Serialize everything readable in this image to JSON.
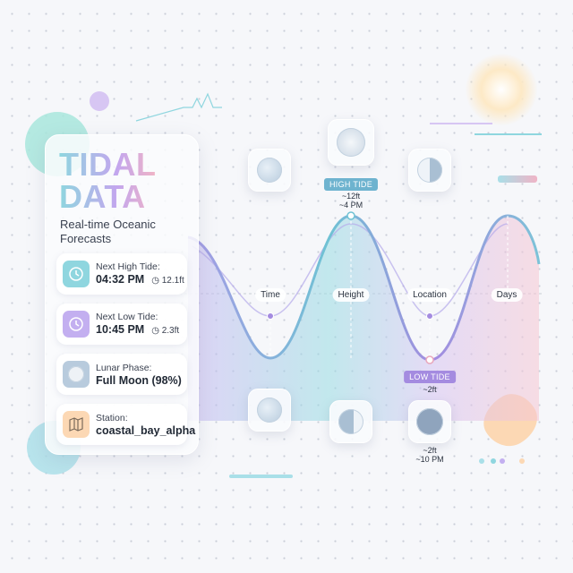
{
  "panel": {
    "title_line1": "TIDAL",
    "title_line2": "DATA",
    "subtitle": "Real-time Oceanic Forecasts",
    "items": [
      {
        "label": "Next High Tide:",
        "value": "04:32 PM",
        "extra": "12.1ft",
        "icon": "clock-icon",
        "color": "#8fd6df"
      },
      {
        "label": "Next Low Tide:",
        "value": "10:45 PM",
        "extra": "2.3ft",
        "icon": "clock-icon",
        "color": "#c3aff0"
      },
      {
        "label": "Lunar Phase:",
        "value": "Full Moon (98%)",
        "icon": "moon-icon",
        "color": "#b8cbdd"
      },
      {
        "label": "Station:",
        "value": "coastal_bay_alpha",
        "icon": "map-icon",
        "color": "#fcd8b4"
      }
    ]
  },
  "chart": {
    "axis_labels": [
      "Time",
      "Height",
      "Location",
      "Days"
    ],
    "high_tide": {
      "tag": "HIGH TIDE",
      "height": "~12ft",
      "time": "~4 PM",
      "color": "#6eb3cf"
    },
    "low_tide": {
      "tag": "LOW TIDE",
      "height": "~2ft",
      "color": "#a48be0"
    },
    "bottom_note": {
      "height": "~2ft",
      "time": "~10 PM"
    }
  }
}
